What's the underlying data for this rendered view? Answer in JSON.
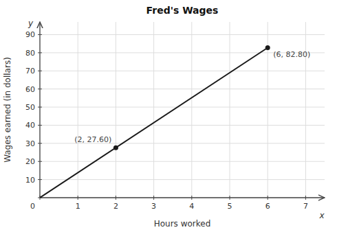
{
  "chart_data": {
    "type": "line",
    "title": "Fred's Wages",
    "x_label": "Hours worked",
    "y_label": "Wages earned (in dollars)",
    "x_letter": "x",
    "y_letter": "y",
    "x": [
      0,
      6
    ],
    "values": [
      0,
      82.8
    ],
    "color": "#1a1a1a",
    "annotations": [
      {
        "x": 2,
        "y": 27.6,
        "text": "(2, 27.60)"
      },
      {
        "x": 6,
        "y": 82.8,
        "text": "(6, 82.80)"
      }
    ],
    "xlim": [
      0,
      7.5
    ],
    "ylim": [
      0,
      97
    ],
    "xticks": [
      0,
      1,
      2,
      3,
      4,
      5,
      6,
      7
    ],
    "yticks": [
      0,
      10,
      20,
      30,
      40,
      50,
      60,
      70,
      80,
      90
    ],
    "grid": true
  }
}
